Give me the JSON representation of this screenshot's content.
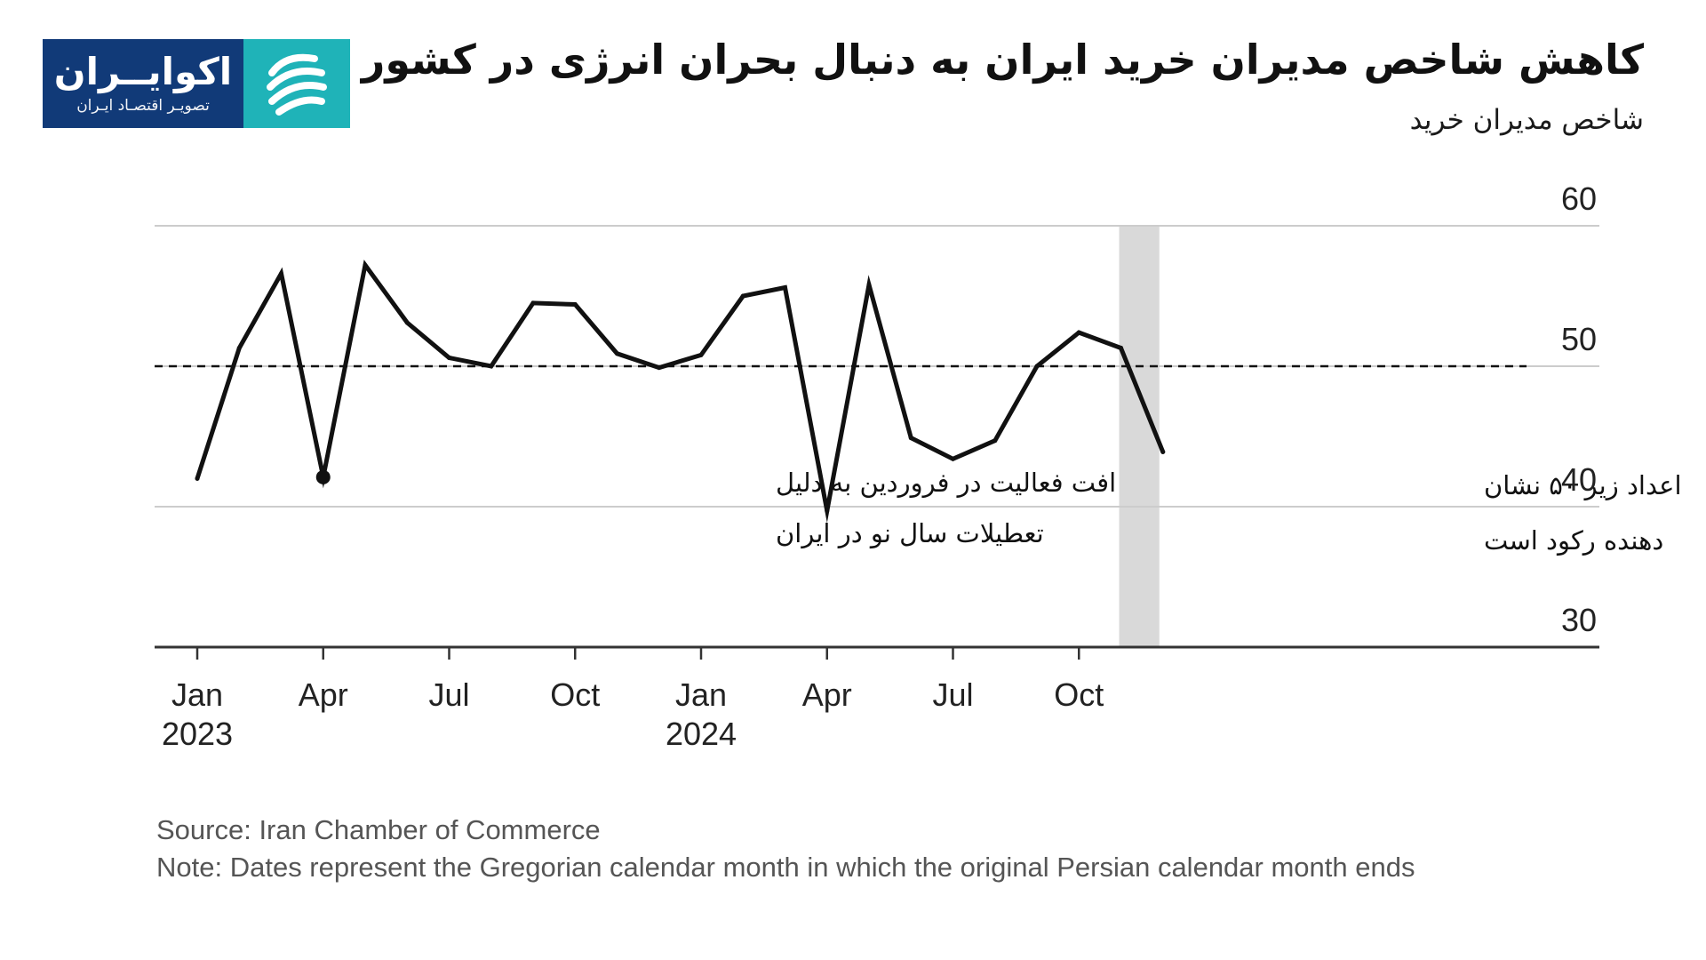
{
  "logo": {
    "name": "اکوایــران",
    "tagline": "تصویـر اقتصـاد ایـران",
    "icon": "ecoiran-swirl-icon"
  },
  "title": "کاهش شاخص مدیران خرید ایران به دنبال بحران انرژی در کشور",
  "subtitle": "شاخص مدیران خرید",
  "colors": {
    "line": "#111111",
    "shade": "#d9d9d9",
    "grid": "#cccccc",
    "axis": "#333333",
    "logo_blue": "#113a78",
    "logo_teal": "#1fb3b8"
  },
  "chart_data": {
    "type": "line",
    "x": [
      "2023-01",
      "2023-02",
      "2023-03",
      "2023-04",
      "2023-05",
      "2023-06",
      "2023-07",
      "2023-08",
      "2023-09",
      "2023-10",
      "2023-11",
      "2023-12",
      "2024-01",
      "2024-02",
      "2024-03",
      "2024-04",
      "2024-05",
      "2024-06",
      "2024-07",
      "2024-08",
      "2024-09",
      "2024-10",
      "2024-11",
      "2024-12"
    ],
    "series": [
      {
        "values": [
          42.0,
          51.3,
          56.6,
          42.1,
          57.2,
          53.1,
          50.6,
          50.0,
          54.5,
          54.4,
          50.9,
          49.9,
          50.8,
          55.0,
          55.6,
          39.7,
          55.8,
          44.9,
          43.4,
          44.7,
          50.0,
          52.4,
          51.3,
          43.9
        ]
      }
    ],
    "ylim": [
      30,
      60
    ],
    "yticks": [
      30,
      40,
      50,
      60
    ],
    "xticks": [
      {
        "x": "2023-01",
        "label": "Jan",
        "year": "2023"
      },
      {
        "x": "2023-04",
        "label": "Apr",
        "year": ""
      },
      {
        "x": "2023-07",
        "label": "Jul",
        "year": ""
      },
      {
        "x": "2023-10",
        "label": "Oct",
        "year": ""
      },
      {
        "x": "2024-01",
        "label": "Jan",
        "year": "2024"
      },
      {
        "x": "2024-04",
        "label": "Apr",
        "year": ""
      },
      {
        "x": "2024-07",
        "label": "Jul",
        "year": ""
      },
      {
        "x": "2024-10",
        "label": "Oct",
        "year": ""
      }
    ],
    "reference_line": {
      "y": 50,
      "style": "dashed"
    },
    "shaded_region": {
      "from": "2024-11",
      "to": "2024-12"
    },
    "grid": "horizontal",
    "y_axis_side": "right",
    "annotations": [
      {
        "x": "2023-04",
        "y": 42.1,
        "marker": "dot",
        "lines": [
          "افت فعالیت در فروردین به دلیل",
          "تعطیلات سال نو در ایران"
        ]
      },
      {
        "x": "2024-12",
        "y": 40,
        "marker": "none",
        "lines": [
          "اعداد زیر ۵۰ نشان",
          "دهنده رکود است"
        ]
      }
    ]
  },
  "footer": {
    "source": "Source: Iran Chamber of Commerce",
    "note": "Note: Dates represent the Gregorian calendar month in which the original Persian calendar month ends"
  }
}
